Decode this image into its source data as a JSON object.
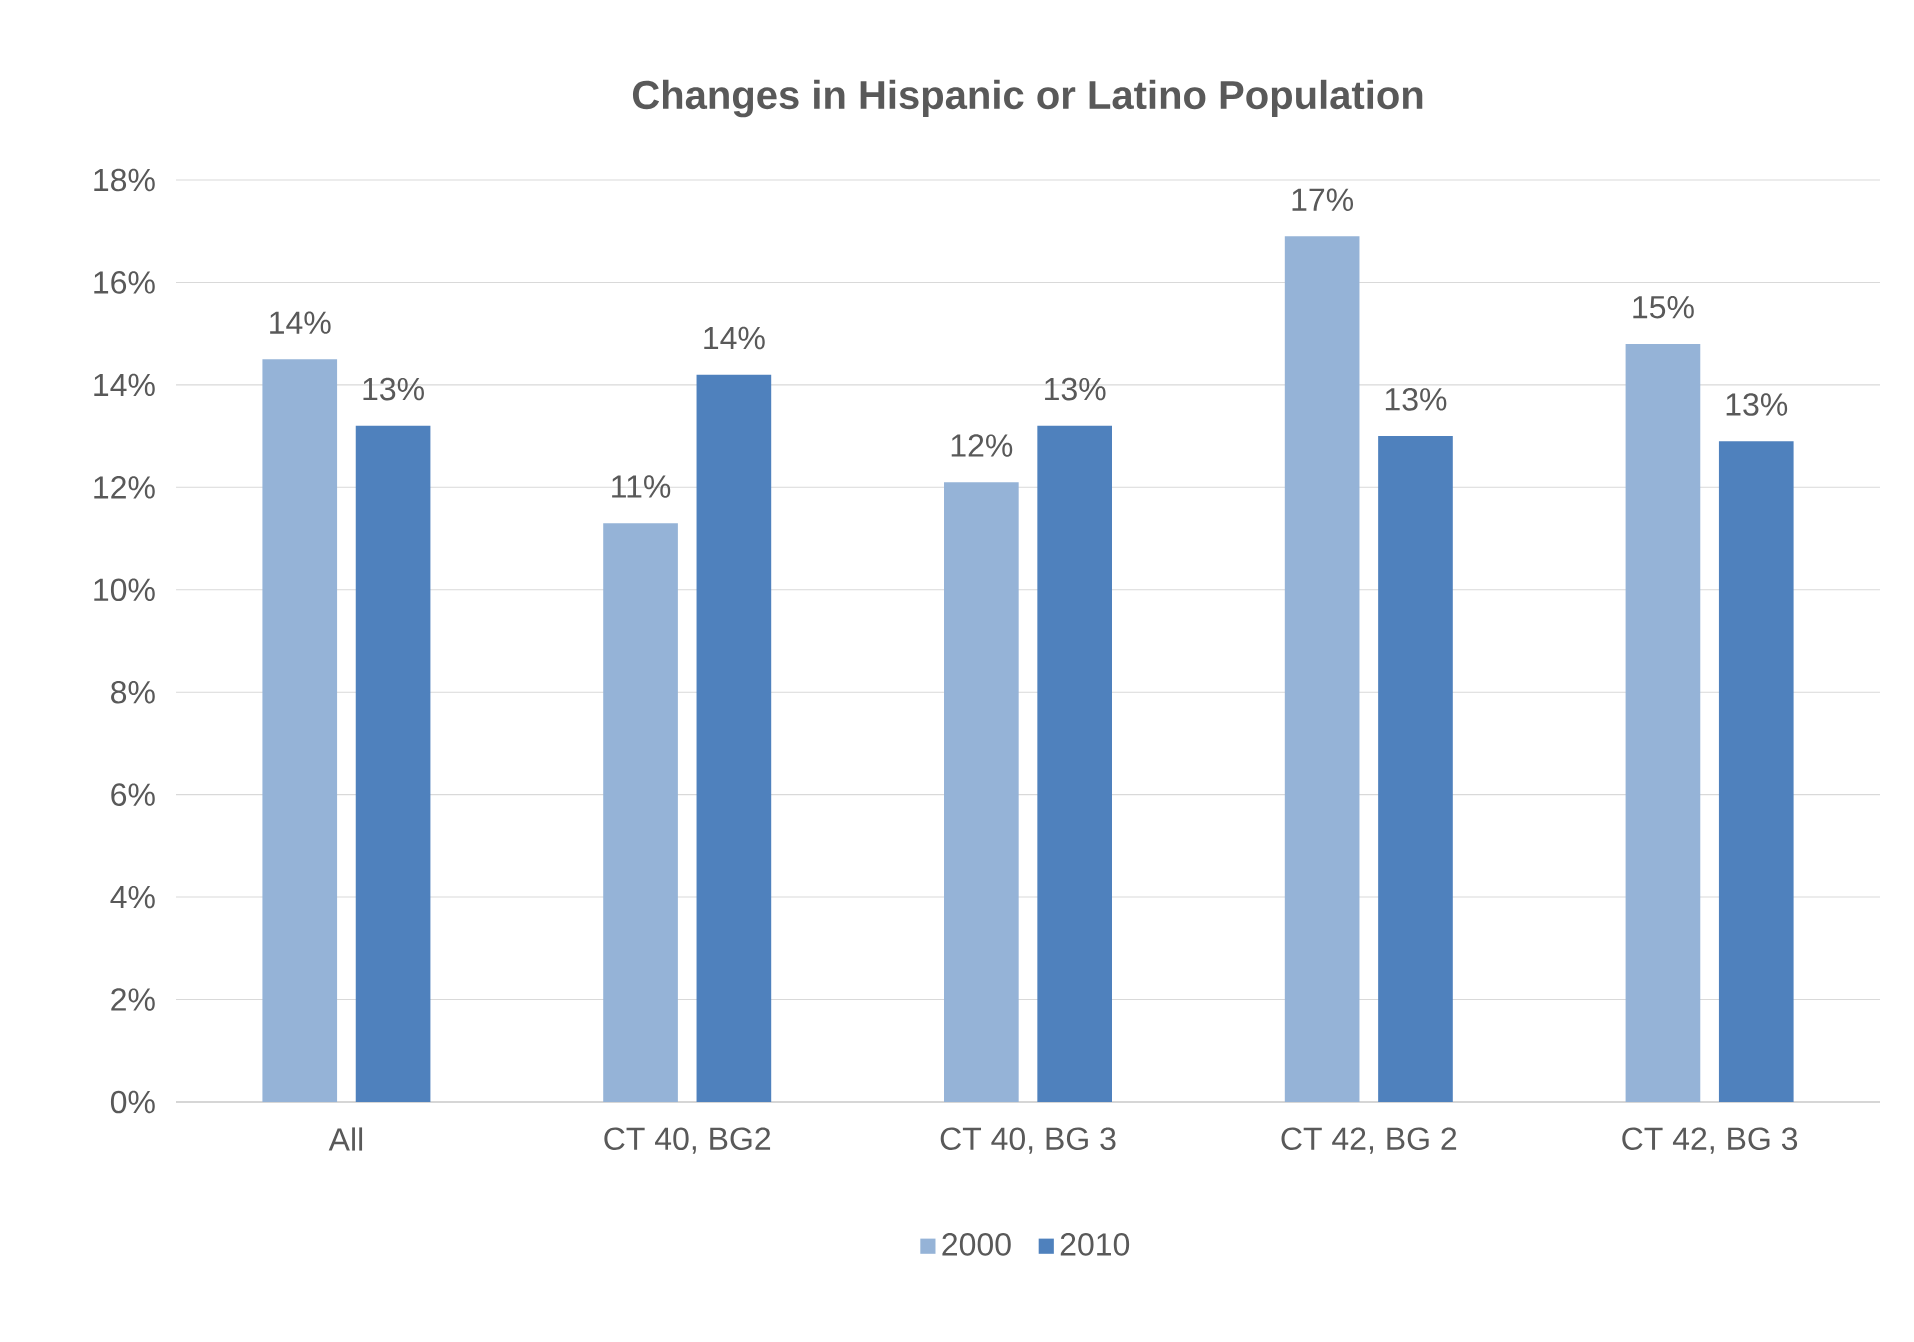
{
  "chart_data": {
    "type": "bar",
    "title": "Changes in Hispanic or Latino Population",
    "categories": [
      "All",
      "CT 40, BG2",
      "CT 40, BG 3",
      "CT 42, BG 2",
      "CT 42, BG 3"
    ],
    "series": [
      {
        "name": "2000",
        "color": "#95b3d7",
        "values": [
          14.5,
          11.3,
          12.1,
          16.9,
          14.8
        ],
        "value_labels": [
          "14%",
          "11%",
          "12%",
          "17%",
          "15%"
        ]
      },
      {
        "name": "2010",
        "color": "#4f81bd",
        "values": [
          13.2,
          14.2,
          13.2,
          13.0,
          12.9
        ],
        "value_labels": [
          "13%",
          "14%",
          "13%",
          "13%",
          "13%"
        ]
      }
    ],
    "ylim": [
      0,
      18
    ],
    "yticks": [
      {
        "value": 0,
        "label": "0%"
      },
      {
        "value": 2,
        "label": "2%"
      },
      {
        "value": 4,
        "label": "4%"
      },
      {
        "value": 6,
        "label": "6%"
      },
      {
        "value": 8,
        "label": "8%"
      },
      {
        "value": 10,
        "label": "10%"
      },
      {
        "value": 12,
        "label": "12%"
      },
      {
        "value": 14,
        "label": "14%"
      },
      {
        "value": 16,
        "label": "16%"
      },
      {
        "value": 18,
        "label": "18%"
      }
    ],
    "grid": "y",
    "legend": "bottom"
  }
}
